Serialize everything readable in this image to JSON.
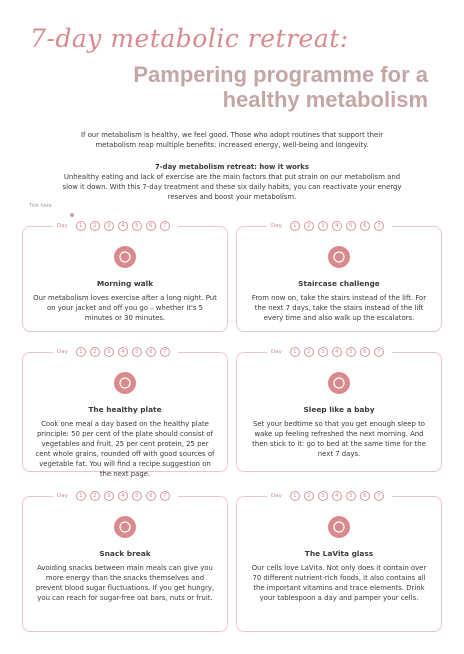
{
  "header": {
    "script": "7-day metabolic retreat:",
    "title": "Pampering programme for a healthy metabolism"
  },
  "intro": "If our metabolism is healthy, we feel good. Those who adopt routines that support their metabolism reap multiple benefits: increased energy, well-being and longevity.",
  "how": {
    "title": "7-day metabolism retreat: how it works",
    "text": "Unhealthy eating and lack of exercise are the main factors that put strain on our metabolism and slow it down. With this 7-day treatment and these six daily habits, you can reactivate your energy reserves and boost your metabolism."
  },
  "tick_note": "Tick here",
  "day_label": "Day",
  "days": [
    1,
    2,
    3,
    4,
    5,
    6,
    7
  ],
  "cards": [
    {
      "title": "Morning walk",
      "text": "Our metabolism loves exercise after a long night. Put on your jacket and off you go – whether it's 5 minutes or 30 minutes."
    },
    {
      "title": "Staircase challenge",
      "text": "From now on, take the stairs instead of the lift. For the next 7 days, take the stairs instead of the lift every time and also walk up the escalators."
    },
    {
      "title": "The healthy plate",
      "text": "Cook one meal a day based on the healthy plate principle: 50 per cent of the plate should consist of vegetables and fruit, 25 per cent protein, 25 per cent whole grains, rounded off with good sources of vegetable fat. You will find a recipe suggestion on the next page."
    },
    {
      "title": "Sleep like a baby",
      "text": "Set your bedtime so that you get enough sleep to wake up feeling refreshed the next morning. And then stick to it: go to bed at the same time for the next 7 days."
    },
    {
      "title": "Snack break",
      "text": "Avoiding snacks between main meals can give you more energy than the snacks themselves and prevent blood sugar fluctuations. If you get hungry, you can reach for sugar-free oat bars, nuts or fruit."
    },
    {
      "title": "The LaVita glass",
      "text": "Our cells love LaVita. Not only does it contain over 70 different nutrient-rich foods, it also contains all the important vitamins and trace elements. Drink your tablespoon a day and pamper your cells."
    }
  ]
}
